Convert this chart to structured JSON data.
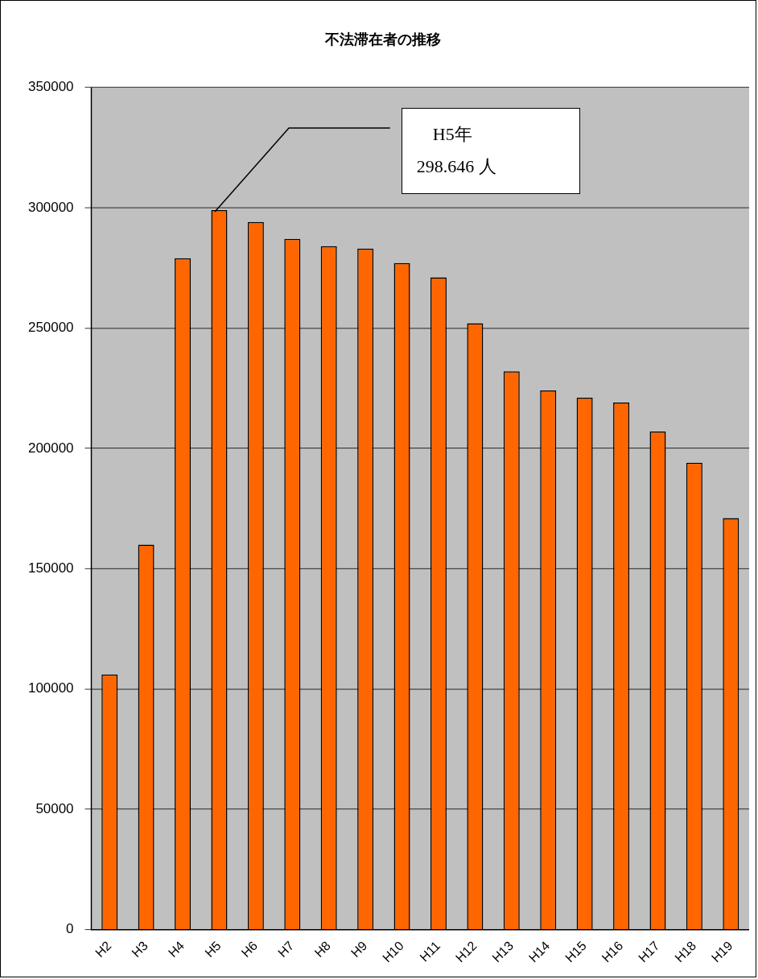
{
  "chart_data": {
    "type": "bar",
    "title": "不法滞在者の推移",
    "categories": [
      "H2",
      "H3",
      "H4",
      "H5",
      "H6",
      "H7",
      "H8",
      "H9",
      "H10",
      "H11",
      "H12",
      "H13",
      "H14",
      "H15",
      "H16",
      "H17",
      "H18",
      "H19"
    ],
    "values": [
      106000,
      160000,
      279000,
      299000,
      294000,
      287000,
      284000,
      283000,
      277000,
      271000,
      252000,
      232000,
      224000,
      221000,
      219000,
      207000,
      194000,
      171000
    ],
    "color": "#ff6600",
    "ylim": [
      0,
      350000
    ],
    "yticks": [
      0,
      50000,
      100000,
      150000,
      200000,
      250000,
      300000,
      350000
    ],
    "grid": "y",
    "legend": false,
    "annotations": [
      "H5年\n298.646 人"
    ]
  }
}
